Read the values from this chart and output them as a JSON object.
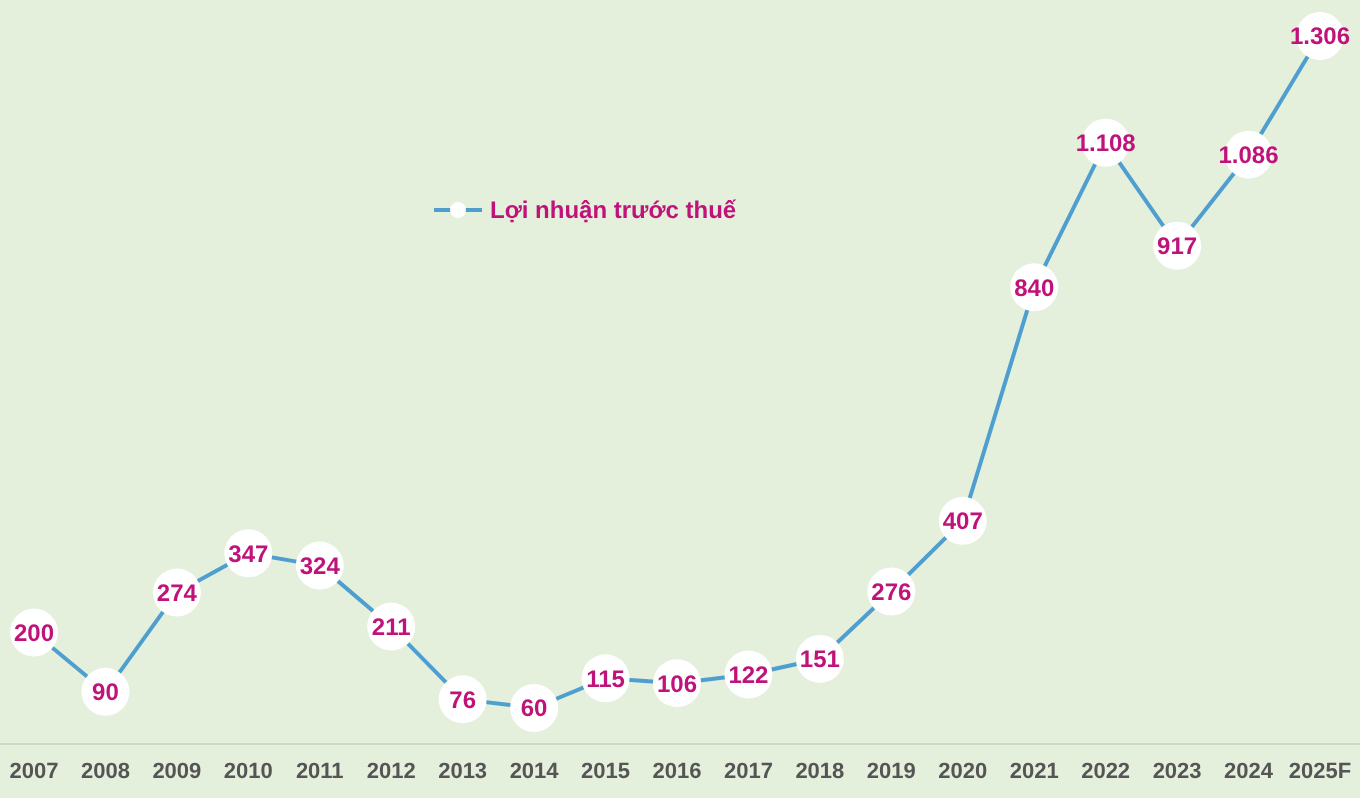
{
  "chart_data": {
    "type": "line",
    "categories": [
      "2007",
      "2008",
      "2009",
      "2010",
      "2011",
      "2012",
      "2013",
      "2014",
      "2015",
      "2016",
      "2017",
      "2018",
      "2019",
      "2020",
      "2021",
      "2022",
      "2023",
      "2024",
      "2025F"
    ],
    "series": [
      {
        "name": "Lợi nhuận trước thuế",
        "color": "#4e9fd0",
        "values": [
          200,
          90,
          274,
          347,
          324,
          211,
          76,
          60,
          115,
          106,
          122,
          151,
          276,
          407,
          840,
          1108,
          917,
          1086,
          1306
        ],
        "value_labels": [
          "200",
          "90",
          "274",
          "347",
          "324",
          "211",
          "76",
          "60",
          "115",
          "106",
          "122",
          "151",
          "276",
          "407",
          "840",
          "1.108",
          "917",
          "1.086",
          "1.306"
        ]
      }
    ],
    "marker": "circle",
    "line_style": "solid",
    "legend": "top left"
  }
}
